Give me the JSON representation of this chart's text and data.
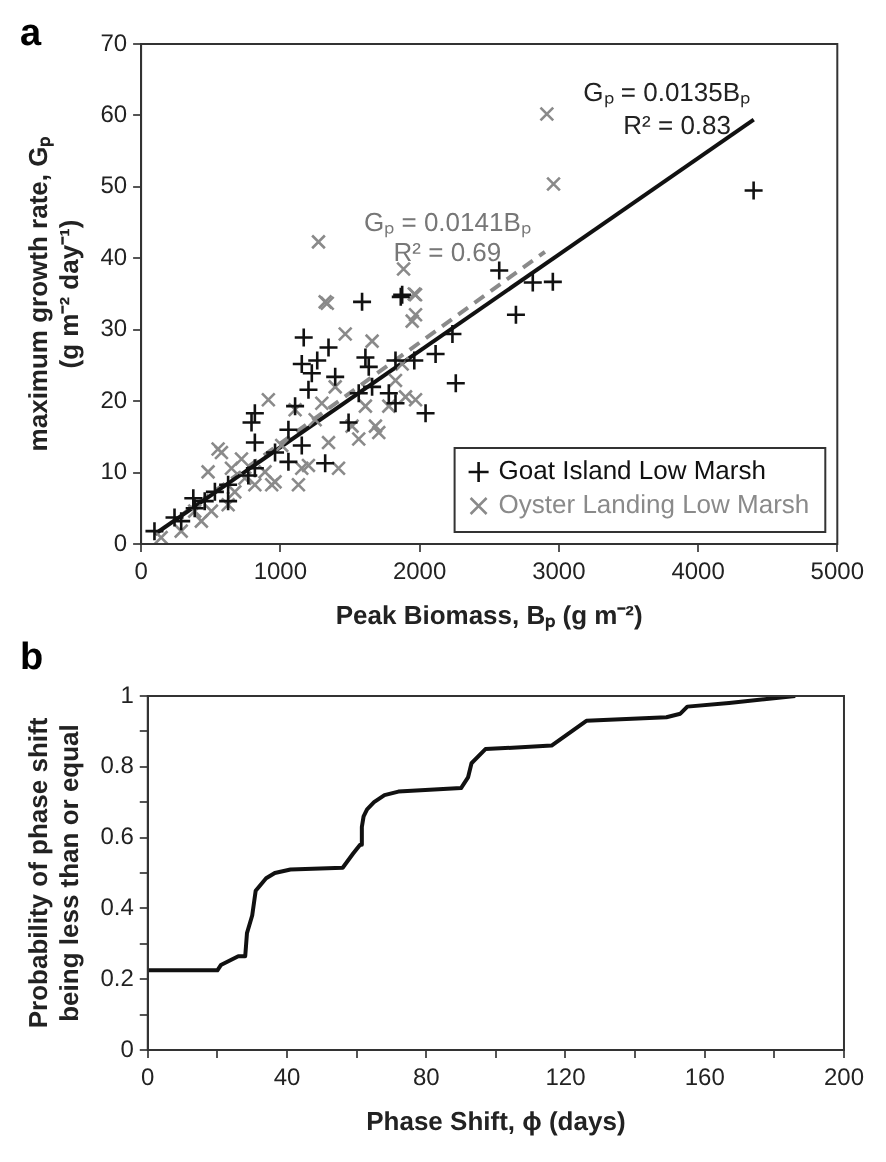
{
  "chart_data": [
    {
      "type": "scatter",
      "xlabel": "Peak Biomass, Bₚ (g m⁻²)",
      "ylabel": "maximum growth rate, Gₚ\n(g m⁻² day⁻¹)",
      "xlim": [
        0,
        5000
      ],
      "xticks": [
        0,
        1000,
        2000,
        3000,
        4000,
        5000
      ],
      "ylim": [
        0,
        70
      ],
      "yticks": [
        0,
        10,
        20,
        30,
        40,
        50,
        60,
        70
      ],
      "legend": "bottom right",
      "annotations": [
        "a",
        "Gₚ = 0.0135Bₚ",
        "R² = 0.83",
        "Gₚ = 0.0141Bₚ",
        "R² = 0.69"
      ],
      "series": [
        {
          "name": "Goat Island Low Marsh",
          "color": "#111111",
          "marker": "cross",
          "x": [
            96,
            240,
            385,
            375,
            530,
            625,
            770,
            817,
            817,
            793,
            817,
            962,
            1058,
            1154,
            1168,
            1154,
            1202,
            1226,
            1265,
            1322,
            1346,
            1394,
            1490,
            1587,
            1611,
            1635,
            1659,
            1563,
            1779,
            1827,
            1875,
            1962,
            2043,
            2115,
            2236,
            2260,
            2692,
            2957,
            2572,
            2813,
            4399,
            1865,
            457,
            288,
            625,
            1058,
            1106,
            1827
          ],
          "values": [
            1.8,
            3.7,
            5,
            6.4,
            7.3,
            8.3,
            9.6,
            10.6,
            14.2,
            17,
            18.3,
            12.8,
            11.5,
            13.8,
            28.9,
            25.2,
            21.6,
            23.9,
            25.7,
            11.3,
            27.5,
            23.4,
            17,
            33.9,
            26.1,
            24.8,
            22,
            21.1,
            21.1,
            19.7,
            34.9,
            25.7,
            18.3,
            26.6,
            29.4,
            22.5,
            32.1,
            36.7,
            38.3,
            36.6,
            49.5,
            34.6,
            6,
            3.2,
            6,
            16,
            19.3,
            25.7
          ]
        },
        {
          "name": "Oyster Landing Low Marsh",
          "color": "#8a8a8a",
          "marker": "x",
          "x": [
            144,
            288,
            433,
            505,
            553,
            577,
            625,
            673,
            745,
            817,
            890,
            914,
            938,
            962,
            1010,
            1106,
            1130,
            1154,
            1202,
            1250,
            1298,
            1322,
            1346,
            1394,
            1418,
            1466,
            1515,
            1563,
            1611,
            1659,
            1683,
            1707,
            1779,
            1827,
            1875,
            1899,
            1947,
            1971,
            1971,
            1971,
            721,
            385,
            481,
            649,
            1274,
            1337,
            1885,
            1962,
            2914,
            2962
          ],
          "values": [
            0.9,
            1.8,
            3.2,
            4.6,
            13.3,
            12.8,
            5.5,
            7.3,
            9.2,
            8.3,
            10.1,
            20.2,
            8.3,
            8.7,
            13.8,
            18.8,
            8.3,
            10.6,
            11,
            17.4,
            19.7,
            33.9,
            14.2,
            22,
            10.6,
            29.4,
            16.5,
            14.7,
            19.3,
            28.4,
            16.5,
            15.6,
            19.3,
            22.9,
            25.2,
            20.6,
            31.2,
            32.1,
            34.9,
            20.2,
            11.9,
            4.6,
            10.1,
            10.6,
            42.3,
            33.7,
            38.5,
            35,
            60.2,
            50.4
          ]
        },
        {
          "type": "line",
          "color": "#111111",
          "line_style": "solid",
          "x": [
            100,
            4400
          ],
          "values": [
            1.4,
            59.4
          ]
        },
        {
          "type": "line",
          "color": "#8a8a8a",
          "line_style": "dashed",
          "x": [
            300,
            2900
          ],
          "values": [
            4.2,
            40.9
          ]
        }
      ]
    },
    {
      "type": "line",
      "xlabel": "Phase Shift, ϕ (days)",
      "ylabel": "Probability of phase shift\nbeing less than or equal",
      "xlim": [
        0,
        200
      ],
      "xticks": [
        0,
        {
          "value": 20,
          "label": null
        },
        40,
        {
          "value": 60,
          "label": null
        },
        80,
        {
          "value": 100,
          "label": null
        },
        120,
        {
          "value": 140,
          "label": null
        },
        160,
        {
          "value": 180,
          "label": null
        },
        200
      ],
      "ylim": [
        0,
        1
      ],
      "yticks": [
        0,
        {
          "value": 0.1,
          "label": null
        },
        0.2,
        {
          "value": 0.3,
          "label": null
        },
        0.4,
        {
          "value": 0.5,
          "label": null
        },
        0.6,
        {
          "value": 0.7,
          "label": null
        },
        0.8,
        {
          "value": 0.9,
          "label": null
        },
        1
      ],
      "annotations": [
        "b"
      ],
      "series": [
        {
          "color": "#111111",
          "x": [
            0,
            20,
            21,
            26,
            28,
            28.5,
            30,
            31,
            34,
            36.5,
            41,
            56,
            59,
            61,
            61.5,
            62,
            63,
            65,
            68,
            72,
            90,
            92,
            93,
            97,
            116,
            126,
            149,
            153,
            155,
            167,
            186
          ],
          "values": [
            0.225,
            0.225,
            0.24,
            0.265,
            0.265,
            0.33,
            0.38,
            0.45,
            0.485,
            0.5,
            0.51,
            0.515,
            0.555,
            0.58,
            0.63,
            0.66,
            0.68,
            0.7,
            0.72,
            0.73,
            0.74,
            0.77,
            0.81,
            0.85,
            0.86,
            0.93,
            0.94,
            0.95,
            0.97,
            0.98,
            1
          ]
        }
      ]
    }
  ]
}
